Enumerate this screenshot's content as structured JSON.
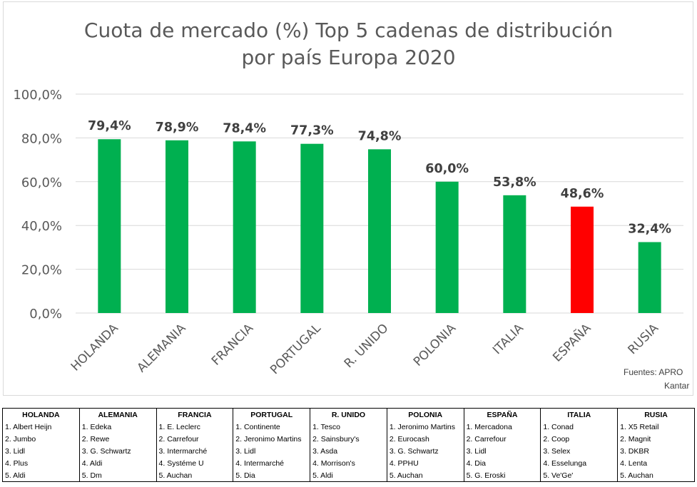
{
  "chart_data": {
    "type": "bar",
    "title_lines": [
      "Cuota de mercado (%) Top 5 cadenas de distribución",
      "por país Europa 2020"
    ],
    "categories": [
      "HOLANDA",
      "ALEMANIA",
      "FRANCIA",
      "PORTUGAL",
      "R. UNIDO",
      "POLONIA",
      "ITALIA",
      "ESPAÑA",
      "RUSIA"
    ],
    "values": [
      79.4,
      78.9,
      78.4,
      77.3,
      74.8,
      60.0,
      53.8,
      48.6,
      32.4
    ],
    "data_labels": [
      "79,4%",
      "78,9%",
      "78,4%",
      "77,3%",
      "74,8%",
      "60,0%",
      "53,8%",
      "48,6%",
      "32,4%"
    ],
    "bar_colors": [
      "#00b050",
      "#00b050",
      "#00b050",
      "#00b050",
      "#00b050",
      "#00b050",
      "#00b050",
      "#ff0000",
      "#00b050"
    ],
    "y_ticks": [
      0,
      20,
      40,
      60,
      80,
      100
    ],
    "y_tick_labels": [
      "0,0%",
      "20,0%",
      "40,0%",
      "60,0%",
      "80,0%",
      "100,0%"
    ],
    "ylim": [
      0,
      100
    ],
    "grid": true,
    "xlabel": "",
    "ylabel": ""
  },
  "source": {
    "line1": "Fuentes:  APRO",
    "line2": "Kantar"
  },
  "table": {
    "columns": [
      {
        "header": "HOLANDA",
        "items": [
          "1. Albert Heijn",
          "2. Jumbo",
          "3. Lidl",
          "4. Plus",
          "5. Aldi"
        ]
      },
      {
        "header": "ALEMANIA",
        "items": [
          "1. Edeka",
          "2. Rewe",
          "3. G. Schwartz",
          "4. Aldi",
          "5. Dm"
        ]
      },
      {
        "header": "FRANCIA",
        "items": [
          "1. E. Leclerc",
          "2. Carrefour",
          "3. Intermarché",
          "4. Systéme U",
          "5. Auchan"
        ]
      },
      {
        "header": "PORTUGAL",
        "items": [
          "1. Continente",
          "2. Jeronimo Martins",
          "3. Lidl",
          "4. Intermarché",
          "5. Dia"
        ]
      },
      {
        "header": "R. UNIDO",
        "items": [
          "1. Tesco",
          "2. Sainsbury's",
          "3. Asda",
          "4. Morrison's",
          "5. Aldi"
        ]
      },
      {
        "header": "POLONIA",
        "items": [
          "1. Jeronimo Martins",
          "2. Eurocash",
          "3. G. Schwartz",
          "4. PPHU",
          "5. Auchan"
        ]
      },
      {
        "header": "ESPAÑA",
        "items": [
          "1. Mercadona",
          "2. Carrefour",
          "3. Lidl",
          "4. Dia",
          "5. G. Eroski"
        ]
      },
      {
        "header": "ITALIA",
        "items": [
          "1. Conad",
          "2. Coop",
          "3. Selex",
          "4. Esselunga",
          "5. Ve'Ge'"
        ]
      },
      {
        "header": "RUSIA",
        "items": [
          "1. X5 Retail",
          "2. Magnit",
          "3. DKBR",
          "4. Lenta",
          "5. Auchan"
        ]
      }
    ]
  }
}
